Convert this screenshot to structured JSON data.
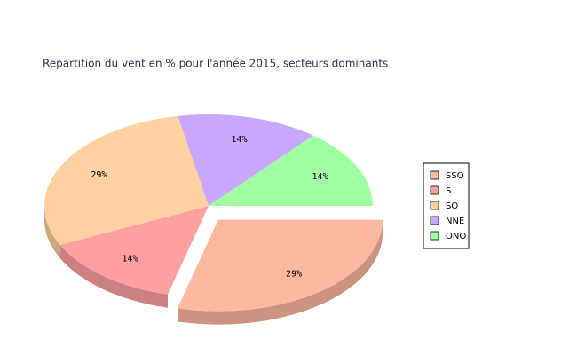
{
  "chart_data": {
    "type": "pie3d",
    "title": "Repartition du vent en % pour l'année 2015, secteurs dominants",
    "categories": [
      "SSO",
      "S",
      "SO",
      "NNE",
      "ONO"
    ],
    "values": [
      29,
      14,
      29,
      14,
      14
    ],
    "value_labels": [
      "29%",
      "14%",
      "29%",
      "14%",
      "14%"
    ],
    "colors": [
      "#ffb8a0",
      "#ffa0a0",
      "#ffd0a0",
      "#c8a8ff",
      "#a0ffa0"
    ],
    "exploded": [
      true,
      false,
      false,
      false,
      false
    ]
  }
}
